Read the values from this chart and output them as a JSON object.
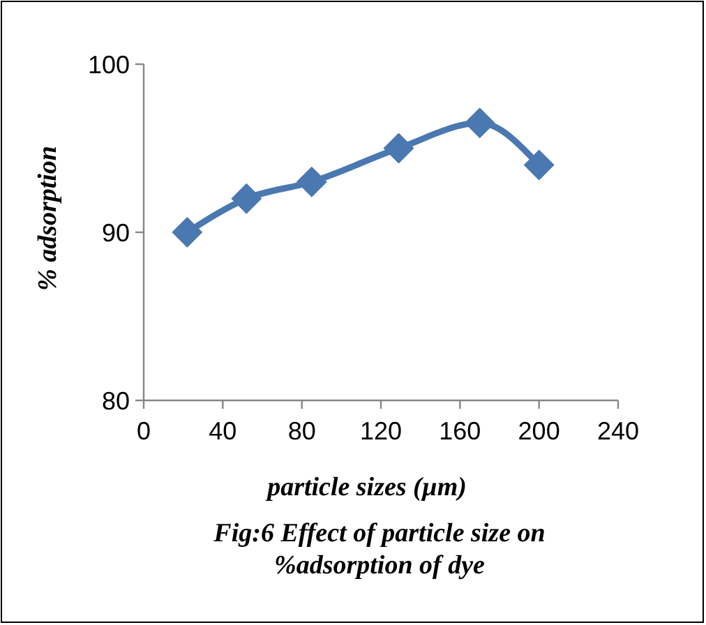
{
  "chart_data": {
    "type": "line",
    "title": "Fig:6 Effect of particle size on %adsorption of dye",
    "xlabel": "particle sizes (µm)",
    "ylabel": "% adsorption",
    "x": [
      22,
      52,
      85,
      129,
      170,
      200
    ],
    "series": [
      {
        "color": "#4a78b0",
        "values": [
          90,
          92,
          93,
          95,
          96.5,
          94
        ]
      }
    ],
    "xlim": [
      0,
      240
    ],
    "xticks": [
      0,
      40,
      80,
      120,
      160,
      200,
      240
    ],
    "ylim": [
      80,
      100
    ],
    "yticks": [
      80,
      90,
      100
    ],
    "grid": false,
    "marker": "diamond",
    "line_style": "solid"
  }
}
